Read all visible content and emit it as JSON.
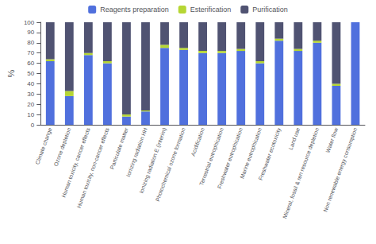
{
  "chart_data": {
    "type": "bar",
    "ylabel": "%",
    "categories": [
      "Climate change",
      "Ozone depletion",
      "Human toxicity, cancer effects",
      "Human toxicity, non-cancer effects",
      "Particulate matter",
      "Ionizing radiation HH",
      "Ionizing radiation E (interim)",
      "Photochemical ozone formation",
      "Acidification",
      "Terrestrial eutrophication",
      "Freshwater eutrophication",
      "Marine eutrophication",
      "Freshwater ecotoxicity",
      "Land use",
      "Mineral, fossil & ren resource depletion",
      "Water flow",
      "Non renewable energy consumption"
    ],
    "series": [
      {
        "name": "Reagents preparation",
        "values": [
          62,
          28,
          68,
          60,
          8,
          13,
          75,
          73,
          70,
          70,
          72,
          60,
          82,
          72,
          80,
          38,
          100
        ]
      },
      {
        "name": "Esterification",
        "values": [
          2,
          5,
          2,
          2,
          2,
          1,
          3,
          2,
          2,
          2,
          2,
          2,
          2,
          2,
          2,
          2,
          0
        ]
      },
      {
        "name": "Purification",
        "values": [
          36,
          67,
          30,
          38,
          90,
          86,
          22,
          25,
          28,
          28,
          26,
          38,
          16,
          26,
          18,
          60,
          0
        ]
      }
    ],
    "stacked": true,
    "ylim": [
      0,
      100
    ],
    "yticks": [
      0,
      10,
      20,
      30,
      40,
      50,
      60,
      70,
      80,
      90,
      100
    ],
    "grid": false,
    "legend": "top"
  }
}
